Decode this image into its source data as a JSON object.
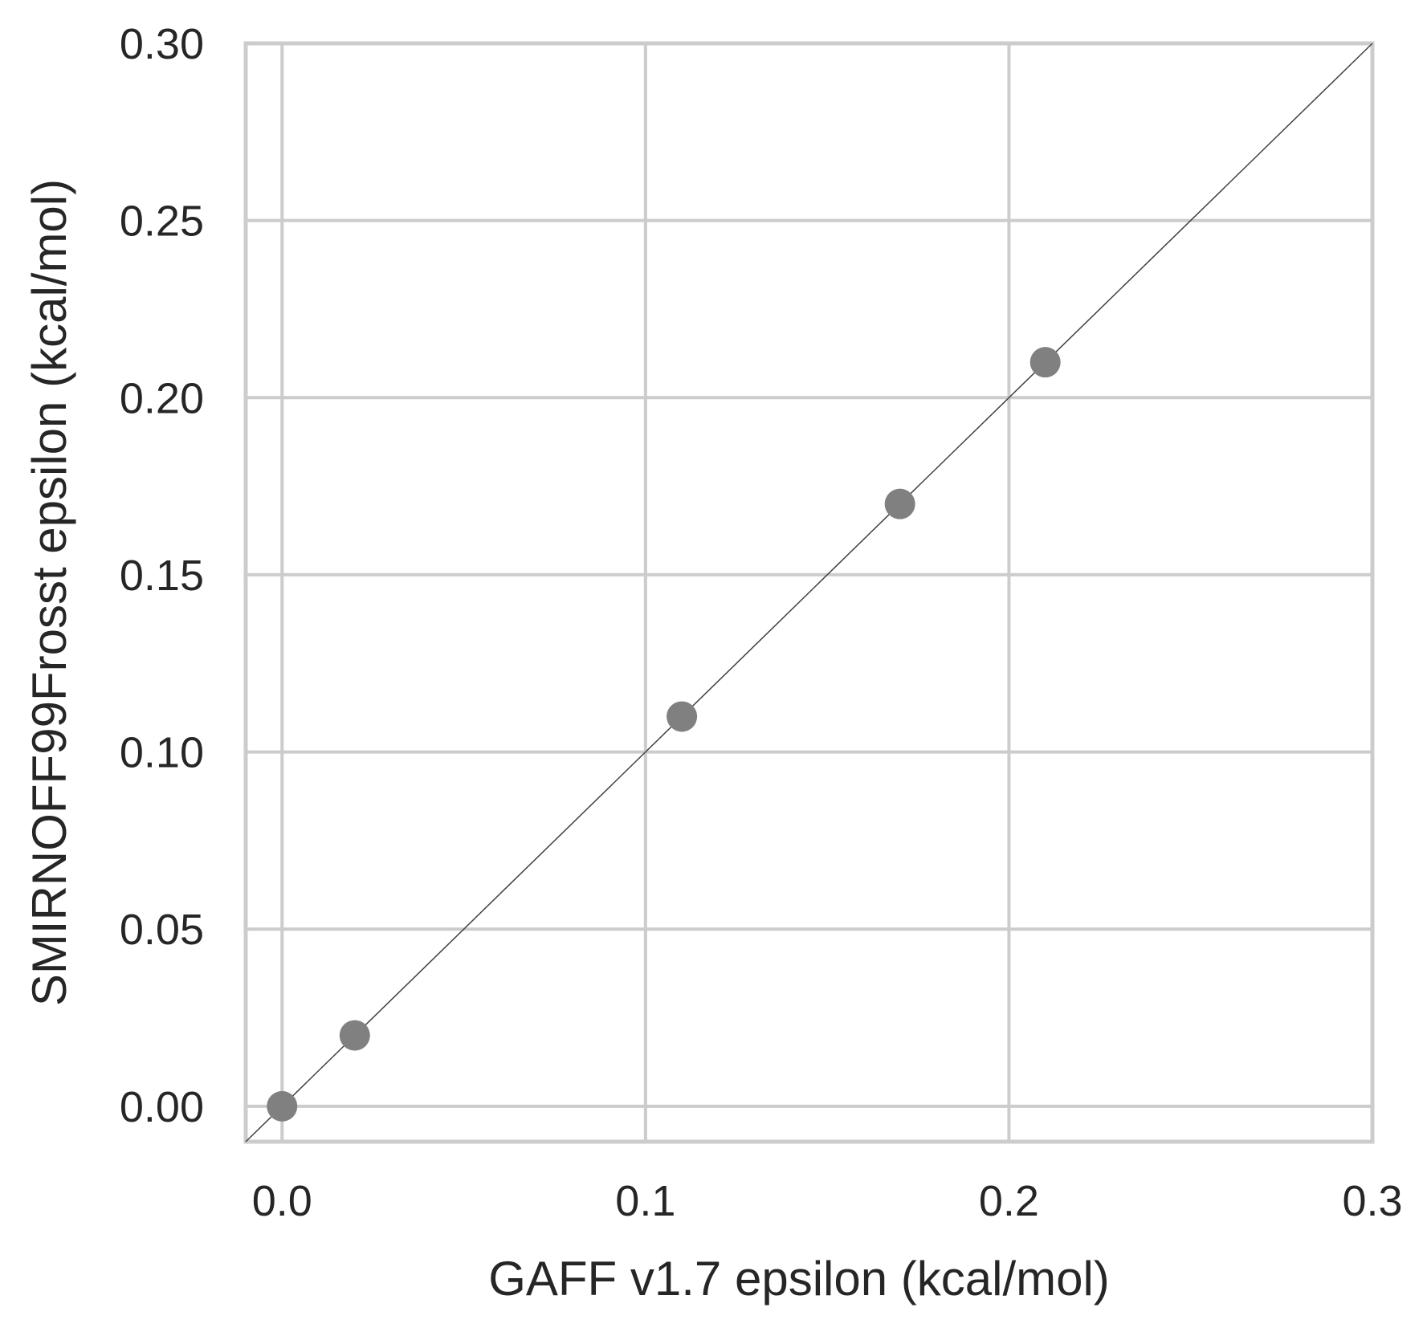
{
  "chart_data": {
    "type": "scatter",
    "title": "",
    "xlabel": "GAFF v1.7 epsilon (kcal/mol)",
    "ylabel": "SMIRNOFF99Frosst epsilon (kcal/mol)",
    "xlim": [
      -0.01,
      0.3
    ],
    "ylim": [
      -0.01,
      0.3
    ],
    "x_ticks": [
      0.0,
      0.1,
      0.2,
      0.3
    ],
    "x_tick_labels": [
      "0.0",
      "0.1",
      "0.2",
      "0.3"
    ],
    "y_ticks": [
      0.0,
      0.05,
      0.1,
      0.15,
      0.2,
      0.25,
      0.3
    ],
    "y_tick_labels": [
      "0.00",
      "0.05",
      "0.10",
      "0.15",
      "0.20",
      "0.25",
      "0.30"
    ],
    "grid": true,
    "reference_line": "y = x",
    "series": [
      {
        "x": [
          0.0,
          0.02,
          0.11,
          0.17,
          0.21
        ],
        "y": [
          0.0,
          0.02,
          0.11,
          0.17,
          0.21
        ]
      }
    ],
    "colors": {
      "point": "#808080",
      "grid": "#cccccc",
      "frame": "#cccccc",
      "reference_line": "#404040",
      "text": "#262626"
    }
  }
}
